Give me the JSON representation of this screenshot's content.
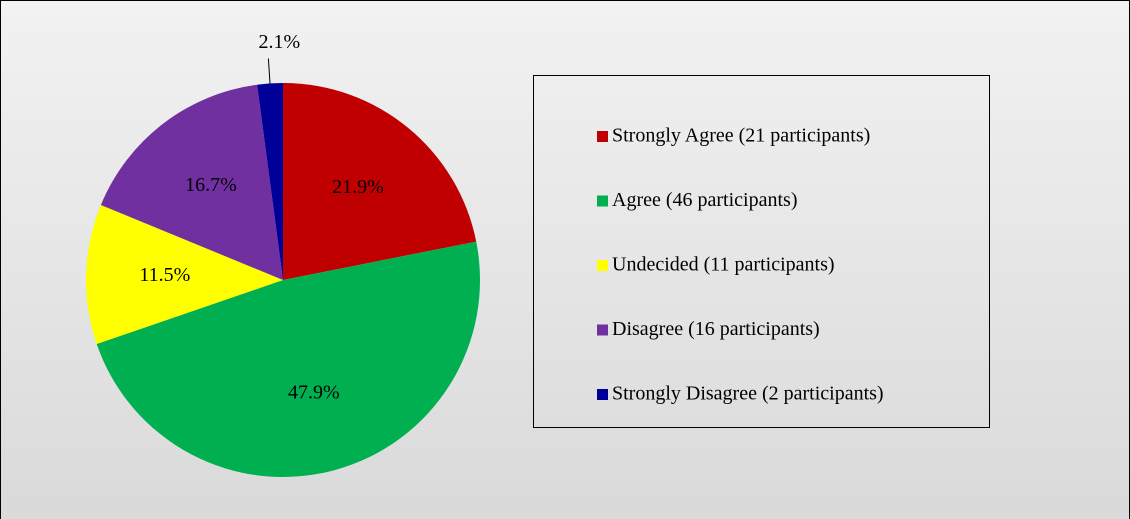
{
  "chart_data": {
    "type": "pie",
    "categories": [
      "Strongly Agree (21 participants)",
      "Agree (46 participants)",
      "Undecided (11 participants)",
      "Disagree (16 participants)",
      "Strongly Disagree (2 participants)"
    ],
    "values": [
      21.9,
      47.9,
      11.5,
      16.7,
      2.1
    ],
    "value_labels": [
      "21.9%",
      "47.9%",
      "11.5%",
      "16.7%",
      "2.1%"
    ],
    "colors": [
      "#c00000",
      "#00b050",
      "#ffff00",
      "#7030a0",
      "#000099"
    ],
    "legend": "right"
  }
}
